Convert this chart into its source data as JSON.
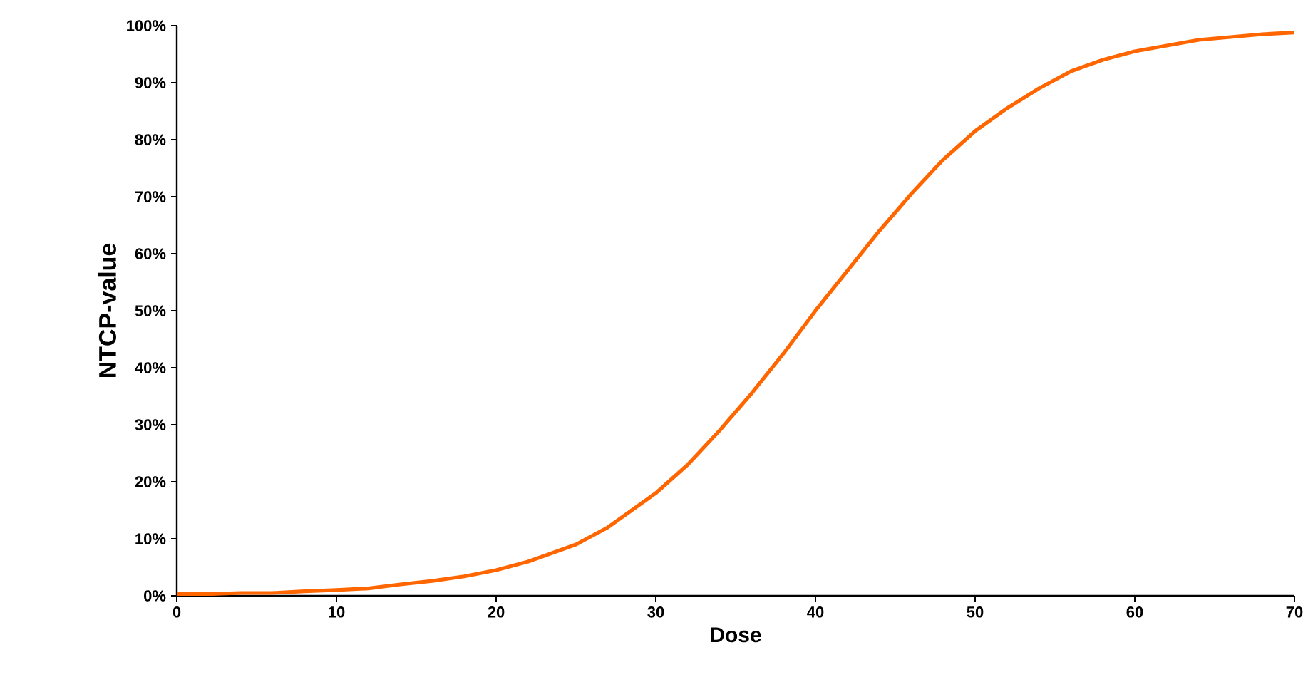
{
  "chart_data": {
    "type": "line",
    "xlabel": "Dose",
    "ylabel": "NTCP-value",
    "x": [
      0,
      2,
      4,
      6,
      8,
      10,
      12,
      14,
      16,
      18,
      20,
      22,
      24,
      25,
      26,
      27,
      28,
      30,
      32,
      34,
      36,
      38,
      40,
      42,
      44,
      46,
      48,
      50,
      52,
      54,
      56,
      58,
      60,
      62,
      64,
      66,
      68,
      70
    ],
    "series": [
      {
        "color": "#ff6600",
        "values": [
          0.3,
          0.3,
          0.5,
          0.5,
          0.8,
          1,
          1.3,
          2,
          2.6,
          3.4,
          4.5,
          6,
          8,
          9,
          10.5,
          12,
          14,
          18,
          23,
          29,
          35.5,
          42.5,
          50,
          57,
          64,
          70.5,
          76.5,
          81.5,
          85.5,
          89,
          92,
          94,
          95.5,
          96.5,
          97.5,
          98,
          98.5,
          98.8
        ]
      }
    ],
    "xlim": [
      0,
      70
    ],
    "xticks": [
      0,
      10,
      20,
      30,
      40,
      50,
      60,
      70
    ],
    "ylim": [
      0,
      100
    ],
    "yticks": [
      {
        "value": 0,
        "label": "0%"
      },
      {
        "value": 10,
        "label": "10%"
      },
      {
        "value": 20,
        "label": "20%"
      },
      {
        "value": 30,
        "label": "30%"
      },
      {
        "value": 40,
        "label": "40%"
      },
      {
        "value": 50,
        "label": "50%"
      },
      {
        "value": 60,
        "label": "60%"
      },
      {
        "value": 70,
        "label": "70%"
      },
      {
        "value": 80,
        "label": "80%"
      },
      {
        "value": 90,
        "label": "90%"
      },
      {
        "value": 100,
        "label": "100%"
      }
    ],
    "grid": false,
    "marker": "none",
    "line_style": "solid"
  }
}
